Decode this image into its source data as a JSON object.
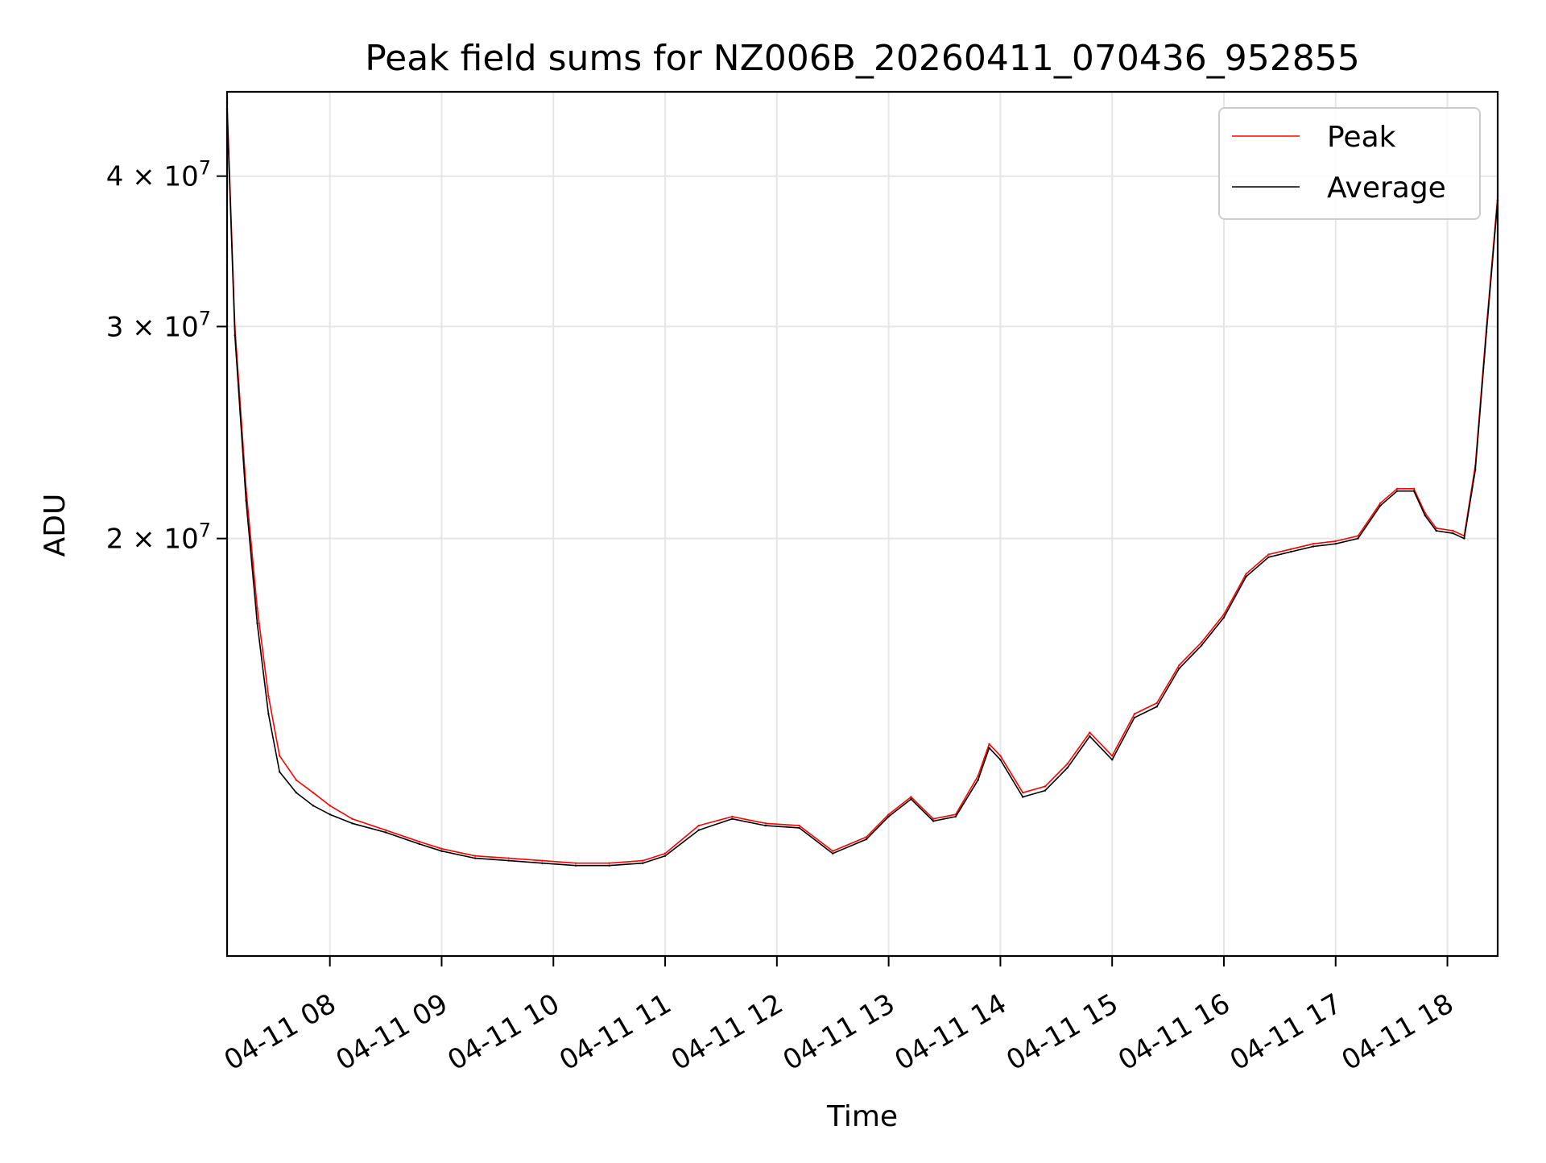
{
  "chart_data": {
    "type": "line",
    "title": "Peak field sums for NZ006B_20260411_070436_952855",
    "xlabel": "Time",
    "ylabel": "ADU",
    "yscale": "log",
    "xlim": [
      7.08,
      18.45
    ],
    "ylim": [
      9000000,
      47000000
    ],
    "grid": true,
    "legend_position": "top-right",
    "x_ticks": [
      {
        "value": 8,
        "label": "04-11 08"
      },
      {
        "value": 9,
        "label": "04-11 09"
      },
      {
        "value": 10,
        "label": "04-11 10"
      },
      {
        "value": 11,
        "label": "04-11 11"
      },
      {
        "value": 12,
        "label": "04-11 12"
      },
      {
        "value": 13,
        "label": "04-11 13"
      },
      {
        "value": 14,
        "label": "04-11 14"
      },
      {
        "value": 15,
        "label": "04-11 15"
      },
      {
        "value": 16,
        "label": "04-11 16"
      },
      {
        "value": 17,
        "label": "04-11 17"
      },
      {
        "value": 18,
        "label": "04-11 18"
      }
    ],
    "y_ticks": [
      {
        "value": 20000000,
        "base": "2 × 10",
        "exp": "7"
      },
      {
        "value": 30000000,
        "base": "3 × 10",
        "exp": "7"
      },
      {
        "value": 40000000,
        "base": "4 × 10",
        "exp": "7"
      }
    ],
    "x": [
      7.08,
      7.15,
      7.25,
      7.35,
      7.45,
      7.55,
      7.7,
      7.85,
      8.0,
      8.2,
      8.5,
      8.8,
      9.0,
      9.3,
      9.6,
      9.9,
      10.2,
      10.5,
      10.8,
      11.0,
      11.3,
      11.6,
      11.9,
      12.2,
      12.5,
      12.8,
      13.0,
      13.2,
      13.4,
      13.6,
      13.8,
      13.9,
      14.0,
      14.2,
      14.4,
      14.6,
      14.8,
      15.0,
      15.2,
      15.4,
      15.6,
      15.8,
      16.0,
      16.2,
      16.4,
      16.6,
      16.8,
      17.0,
      17.2,
      17.4,
      17.55,
      17.7,
      17.8,
      17.9,
      18.05,
      18.15,
      18.25,
      18.35,
      18.45
    ],
    "series": [
      {
        "name": "Peak",
        "color": "#ff0000",
        "values": [
          46000000,
          30000000,
          22000000,
          17500000,
          14800000,
          13200000,
          12600000,
          12300000,
          12000000,
          11700000,
          11450000,
          11200000,
          11050000,
          10900000,
          10850000,
          10800000,
          10750000,
          10750000,
          10800000,
          10950000,
          11550000,
          11750000,
          11600000,
          11550000,
          11000000,
          11300000,
          11800000,
          12200000,
          11700000,
          11800000,
          12700000,
          13500000,
          13200000,
          12300000,
          12450000,
          13000000,
          13800000,
          13200000,
          14300000,
          14600000,
          15700000,
          16400000,
          17300000,
          18700000,
          19400000,
          19600000,
          19800000,
          19900000,
          20100000,
          21400000,
          22000000,
          22000000,
          21000000,
          20400000,
          20300000,
          20100000,
          23000000,
          30000000,
          38500000
        ]
      },
      {
        "name": "Average",
        "color": "#000000",
        "values": [
          45500000,
          29500000,
          21500000,
          17000000,
          14300000,
          12800000,
          12300000,
          12000000,
          11800000,
          11600000,
          11400000,
          11150000,
          11000000,
          10850000,
          10800000,
          10750000,
          10700000,
          10700000,
          10750000,
          10900000,
          11450000,
          11700000,
          11550000,
          11500000,
          10950000,
          11250000,
          11750000,
          12150000,
          11650000,
          11750000,
          12600000,
          13400000,
          13100000,
          12200000,
          12350000,
          12900000,
          13700000,
          13100000,
          14200000,
          14500000,
          15600000,
          16300000,
          17200000,
          18600000,
          19300000,
          19500000,
          19700000,
          19800000,
          20000000,
          21300000,
          21900000,
          21900000,
          20900000,
          20300000,
          20200000,
          20000000,
          22800000,
          29700000,
          38200000
        ]
      }
    ]
  }
}
